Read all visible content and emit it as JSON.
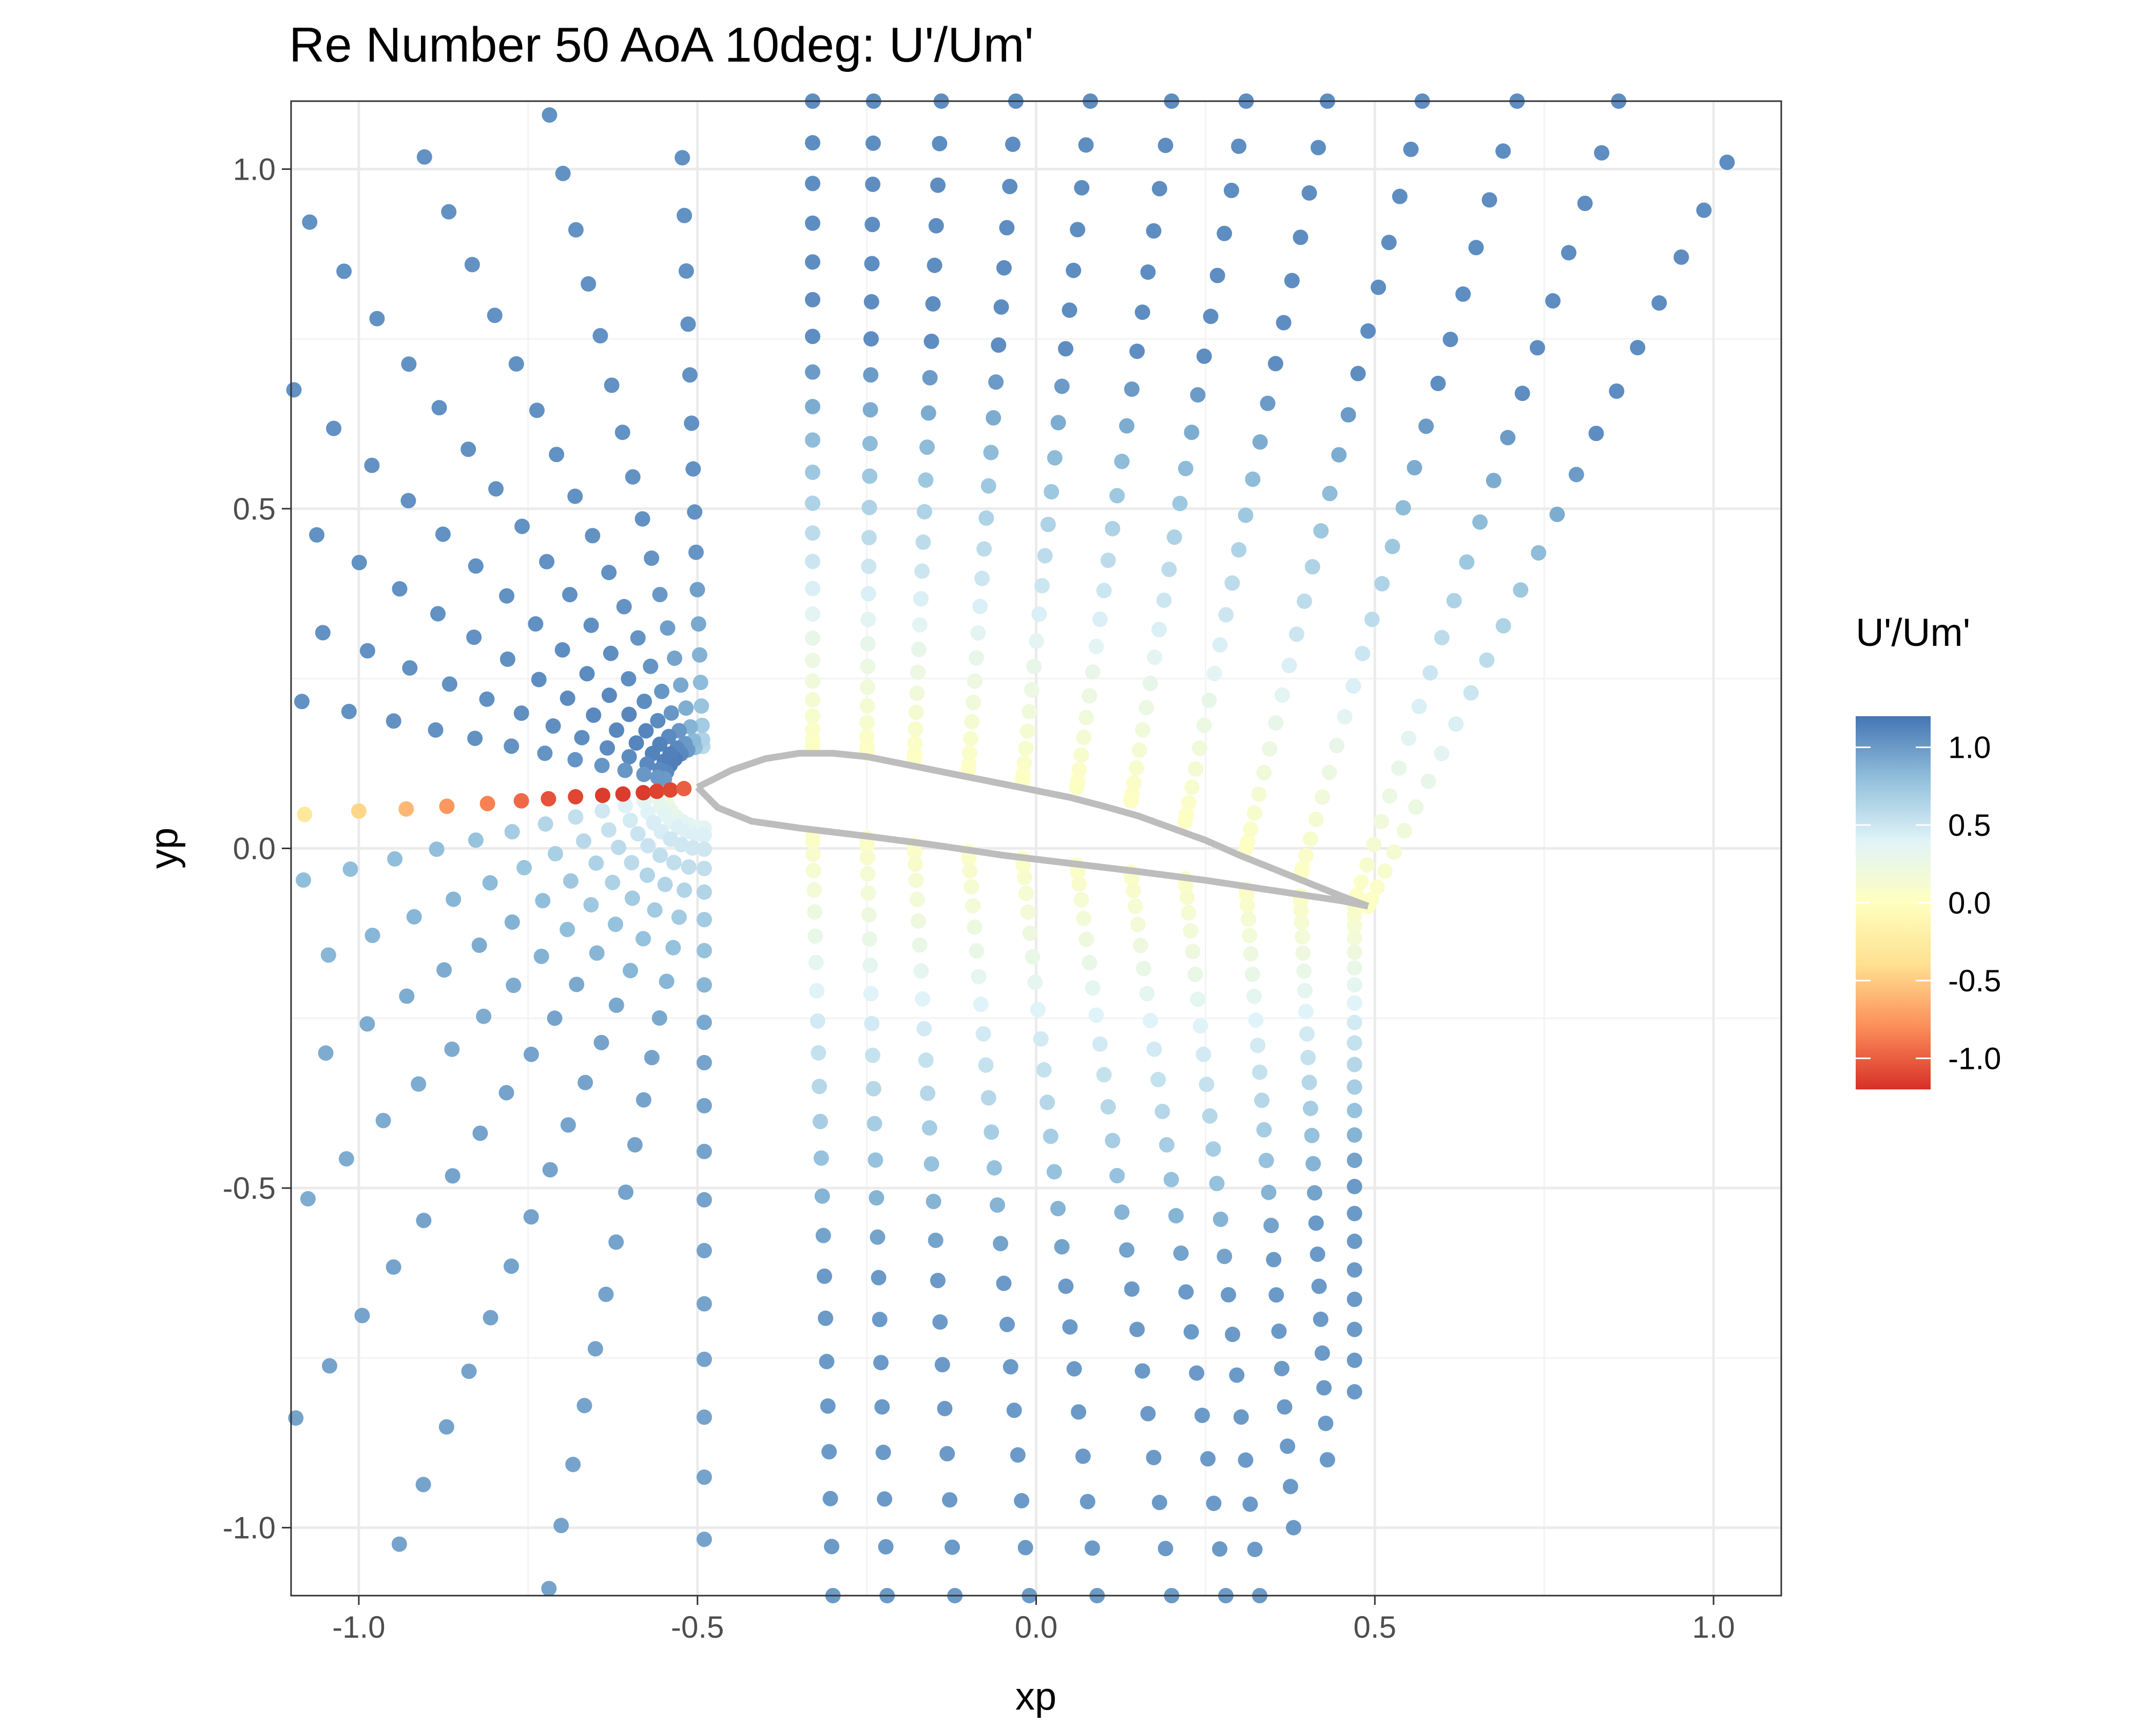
{
  "chart_data": {
    "type": "scatter",
    "title": "Re Number 50 AoA 10deg: U'/Um'",
    "xlabel": "xp",
    "ylabel": "yp",
    "xlim": [
      -1.1,
      1.1
    ],
    "ylim": [
      -1.1,
      1.1
    ],
    "x_ticks": [
      {
        "value": -1.0,
        "label": "-1.0"
      },
      {
        "value": -0.5,
        "label": "-0.5"
      },
      {
        "value": 0.0,
        "label": "0.0"
      },
      {
        "value": 0.5,
        "label": "0.5"
      },
      {
        "value": 1.0,
        "label": "1.0"
      }
    ],
    "y_ticks": [
      {
        "value": 1.0,
        "label": "1.0"
      },
      {
        "value": 0.5,
        "label": "0.5"
      },
      {
        "value": 0.0,
        "label": "0.0"
      },
      {
        "value": -0.5,
        "label": "-0.5"
      },
      {
        "value": -1.0,
        "label": "-1.0"
      }
    ],
    "grid": true,
    "legend": {
      "title": "U'/Um'",
      "position": "right",
      "range": [
        -1.2,
        1.2
      ],
      "ticks": [
        {
          "value": 1.0,
          "label": "1.0"
        },
        {
          "value": 0.5,
          "label": "0.5"
        },
        {
          "value": 0.0,
          "label": "0.0"
        },
        {
          "value": -0.5,
          "label": "-0.5"
        },
        {
          "value": -1.0,
          "label": "-1.0"
        }
      ],
      "colors": [
        "#d73027",
        "#fc8d59",
        "#fee090",
        "#ffffbf",
        "#e0f3f8",
        "#91bfdb",
        "#4575b4"
      ]
    },
    "airfoil": {
      "color": "#bdbdbd",
      "upper": [
        [
          -0.5,
          0.09
        ],
        [
          -0.45,
          0.115
        ],
        [
          -0.4,
          0.132
        ],
        [
          -0.35,
          0.14
        ],
        [
          -0.3,
          0.14
        ],
        [
          -0.25,
          0.135
        ],
        [
          -0.2,
          0.125
        ],
        [
          -0.15,
          0.115
        ],
        [
          -0.1,
          0.105
        ],
        [
          -0.05,
          0.095
        ],
        [
          0.0,
          0.085
        ],
        [
          0.05,
          0.075
        ],
        [
          0.1,
          0.062
        ],
        [
          0.15,
          0.048
        ],
        [
          0.2,
          0.03
        ],
        [
          0.25,
          0.012
        ],
        [
          0.3,
          -0.01
        ],
        [
          0.35,
          -0.03
        ],
        [
          0.4,
          -0.05
        ],
        [
          0.45,
          -0.07
        ],
        [
          0.49,
          -0.085
        ]
      ],
      "lower": [
        [
          -0.5,
          0.09
        ],
        [
          -0.47,
          0.06
        ],
        [
          -0.42,
          0.04
        ],
        [
          -0.35,
          0.03
        ],
        [
          -0.25,
          0.018
        ],
        [
          -0.15,
          0.005
        ],
        [
          -0.05,
          -0.01
        ],
        [
          0.05,
          -0.022
        ],
        [
          0.15,
          -0.034
        ],
        [
          0.25,
          -0.047
        ],
        [
          0.35,
          -0.062
        ],
        [
          0.45,
          -0.077
        ],
        [
          0.49,
          -0.085
        ]
      ]
    },
    "mesh": {
      "center": [
        -0.49,
        0.09
      ],
      "rays": [
        {
          "angle": 92,
          "r_min": 0.06,
          "r_max": 1.4,
          "u_near": 0.6,
          "u_far": 1.05
        },
        {
          "angle": 103,
          "r_min": 0.06,
          "r_max": 1.4,
          "u_near": 0.8,
          "u_far": 1.05
        },
        {
          "angle": 114,
          "r_min": 0.06,
          "r_max": 1.4,
          "u_near": 1.0,
          "u_far": 1.05
        },
        {
          "angle": 125,
          "r_min": 0.06,
          "r_max": 1.4,
          "u_near": 1.1,
          "u_far": 1.05
        },
        {
          "angle": 136,
          "r_min": 0.06,
          "r_max": 1.4,
          "u_near": 1.15,
          "u_far": 1.05
        },
        {
          "angle": 147,
          "r_min": 0.06,
          "r_max": 1.4,
          "u_near": 1.15,
          "u_far": 1.05
        },
        {
          "angle": 158,
          "r_min": 0.06,
          "r_max": 1.4,
          "u_near": 1.1,
          "u_far": 1.05
        },
        {
          "angle": 168,
          "r_min": 0.06,
          "r_max": 1.4,
          "u_near": 1.0,
          "u_far": 1.05
        },
        {
          "angle": 193,
          "r_min": 0.06,
          "r_max": 1.4,
          "u_near": 0.2,
          "u_far": 0.8
        },
        {
          "angle": 204,
          "r_min": 0.06,
          "r_max": 1.4,
          "u_near": 0.25,
          "u_far": 0.85
        },
        {
          "angle": 215,
          "r_min": 0.06,
          "r_max": 1.4,
          "u_near": 0.3,
          "u_far": 0.9
        },
        {
          "angle": 226,
          "r_min": 0.06,
          "r_max": 1.4,
          "u_near": 0.3,
          "u_far": 0.9
        },
        {
          "angle": 237,
          "r_min": 0.06,
          "r_max": 1.4,
          "u_near": 0.35,
          "u_far": 0.95
        },
        {
          "angle": 248,
          "r_min": 0.06,
          "r_max": 1.4,
          "u_near": 0.35,
          "u_far": 0.95
        },
        {
          "angle": 259,
          "r_min": 0.06,
          "r_max": 1.4,
          "u_near": 0.35,
          "u_far": 0.95
        },
        {
          "angle": 270,
          "r_min": 0.06,
          "r_max": 1.4,
          "u_near": 0.35,
          "u_far": 0.95
        }
      ],
      "stagnation_line": {
        "x": [
          -1.08,
          -1.0,
          -0.93,
          -0.87,
          -0.81,
          -0.76,
          -0.72,
          -0.68,
          -0.64,
          -0.61,
          -0.58,
          -0.56,
          -0.54,
          -0.52
        ],
        "y": [
          0.05,
          0.055,
          0.058,
          0.062,
          0.066,
          0.07,
          0.073,
          0.076,
          0.078,
          0.08,
          0.082,
          0.084,
          0.086,
          0.088
        ],
        "u": [
          -0.3,
          -0.45,
          -0.6,
          -0.75,
          -0.85,
          -0.95,
          -1.05,
          -1.1,
          -1.15,
          -1.15,
          -1.15,
          -1.12,
          -1.1,
          -1.0
        ]
      },
      "lines_upper": [
        {
          "x0": -0.33,
          "y0": 0.15,
          "x1": -0.33,
          "y1": 1.1
        },
        {
          "x0": -0.25,
          "y0": 0.14,
          "x1": -0.24,
          "y1": 1.1
        },
        {
          "x0": -0.18,
          "y0": 0.13,
          "x1": -0.14,
          "y1": 1.1
        },
        {
          "x0": -0.1,
          "y0": 0.115,
          "x1": -0.03,
          "y1": 1.1
        },
        {
          "x0": -0.02,
          "y0": 0.1,
          "x1": 0.08,
          "y1": 1.1
        },
        {
          "x0": 0.06,
          "y0": 0.09,
          "x1": 0.2,
          "y1": 1.1
        },
        {
          "x0": 0.14,
          "y0": 0.07,
          "x1": 0.31,
          "y1": 1.1
        },
        {
          "x0": 0.22,
          "y0": 0.04,
          "x1": 0.43,
          "y1": 1.1
        },
        {
          "x0": 0.31,
          "y0": 0.0,
          "x1": 0.57,
          "y1": 1.1
        },
        {
          "x0": 0.39,
          "y0": -0.04,
          "x1": 0.71,
          "y1": 1.1
        },
        {
          "x0": 0.47,
          "y0": -0.08,
          "x1": 0.86,
          "y1": 1.1
        },
        {
          "x0": 0.49,
          "y0": -0.085,
          "x1": 1.02,
          "y1": 1.01
        }
      ],
      "lines_lower": [
        {
          "x0": -0.33,
          "y0": 0.02,
          "x1": -0.3,
          "y1": -1.1
        },
        {
          "x0": -0.25,
          "y0": 0.015,
          "x1": -0.22,
          "y1": -1.1
        },
        {
          "x0": -0.18,
          "y0": 0.005,
          "x1": -0.12,
          "y1": -1.1
        },
        {
          "x0": -0.1,
          "y0": -0.005,
          "x1": -0.01,
          "y1": -1.1
        },
        {
          "x0": -0.02,
          "y0": -0.015,
          "x1": 0.09,
          "y1": -1.1
        },
        {
          "x0": 0.06,
          "y0": -0.025,
          "x1": 0.2,
          "y1": -1.1
        },
        {
          "x0": 0.14,
          "y0": -0.035,
          "x1": 0.28,
          "y1": -1.1
        },
        {
          "x0": 0.22,
          "y0": -0.045,
          "x1": 0.33,
          "y1": -1.1
        },
        {
          "x0": 0.31,
          "y0": -0.06,
          "x1": 0.38,
          "y1": -1.0
        },
        {
          "x0": 0.39,
          "y0": -0.07,
          "x1": 0.43,
          "y1": -0.9
        },
        {
          "x0": 0.47,
          "y0": -0.08,
          "x1": 0.47,
          "y1": -0.8
        }
      ]
    }
  }
}
